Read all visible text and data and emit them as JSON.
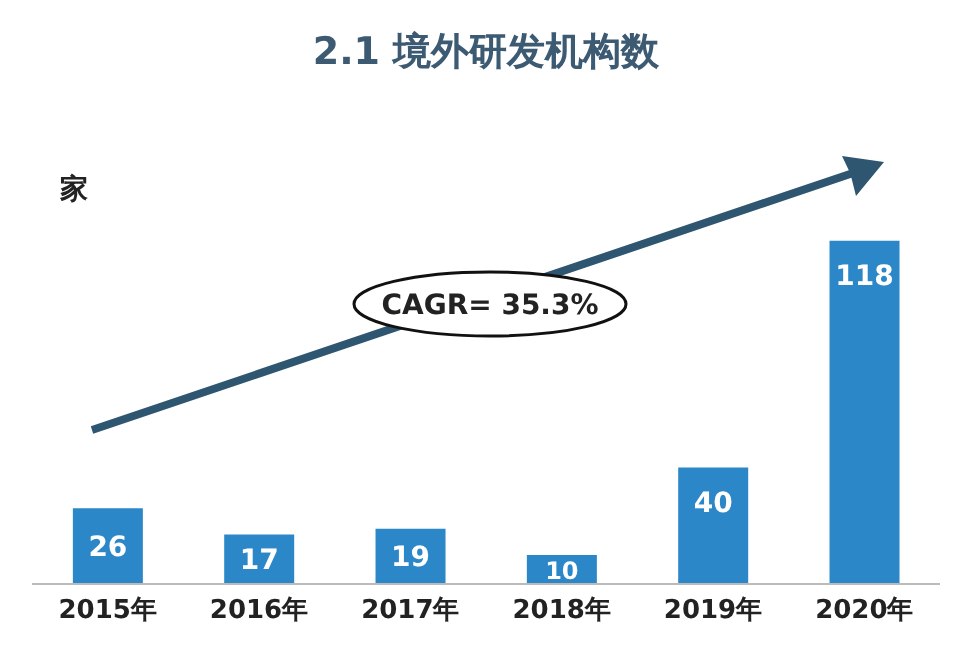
{
  "chart_data": {
    "type": "bar",
    "title": "2.1 境外研发机构数",
    "ylabel": "家",
    "categories": [
      "2015年",
      "2016年",
      "2017年",
      "2018年",
      "2019年",
      "2020年"
    ],
    "values": [
      26,
      17,
      19,
      10,
      40,
      118
    ],
    "color": "#2b87c8",
    "data_labels": true,
    "annotations": [
      "CAGR= 35.3%"
    ],
    "legend": false,
    "grid": false
  }
}
